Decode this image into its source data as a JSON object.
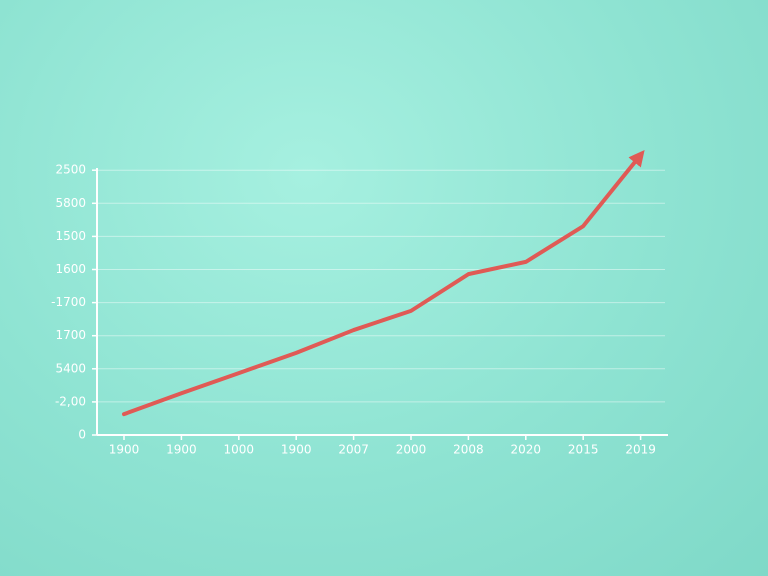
{
  "chart_data": {
    "type": "line",
    "categories": [
      "1900",
      "1900",
      "1000",
      "1900",
      "2007",
      "2000",
      "2008",
      "2020",
      "2015",
      "2019"
    ],
    "values": [
      0.63,
      1.26,
      1.87,
      2.48,
      3.17,
      3.75,
      4.86,
      5.23,
      6.31,
      8.46
    ],
    "color": "#e05a55",
    "ylim": [
      0,
      8.6
    ],
    "yticks": [
      {
        "value": 0,
        "label": "0"
      },
      {
        "value": 1,
        "label": "-2,00"
      },
      {
        "value": 2,
        "label": "5400"
      },
      {
        "value": 3,
        "label": "1700"
      },
      {
        "value": 4,
        "label": "-1700"
      },
      {
        "value": 5,
        "label": "1600"
      },
      {
        "value": 6,
        "label": "1500"
      },
      {
        "value": 7,
        "label": "5800"
      },
      {
        "value": 8,
        "label": "2500"
      }
    ],
    "grid": true
  }
}
